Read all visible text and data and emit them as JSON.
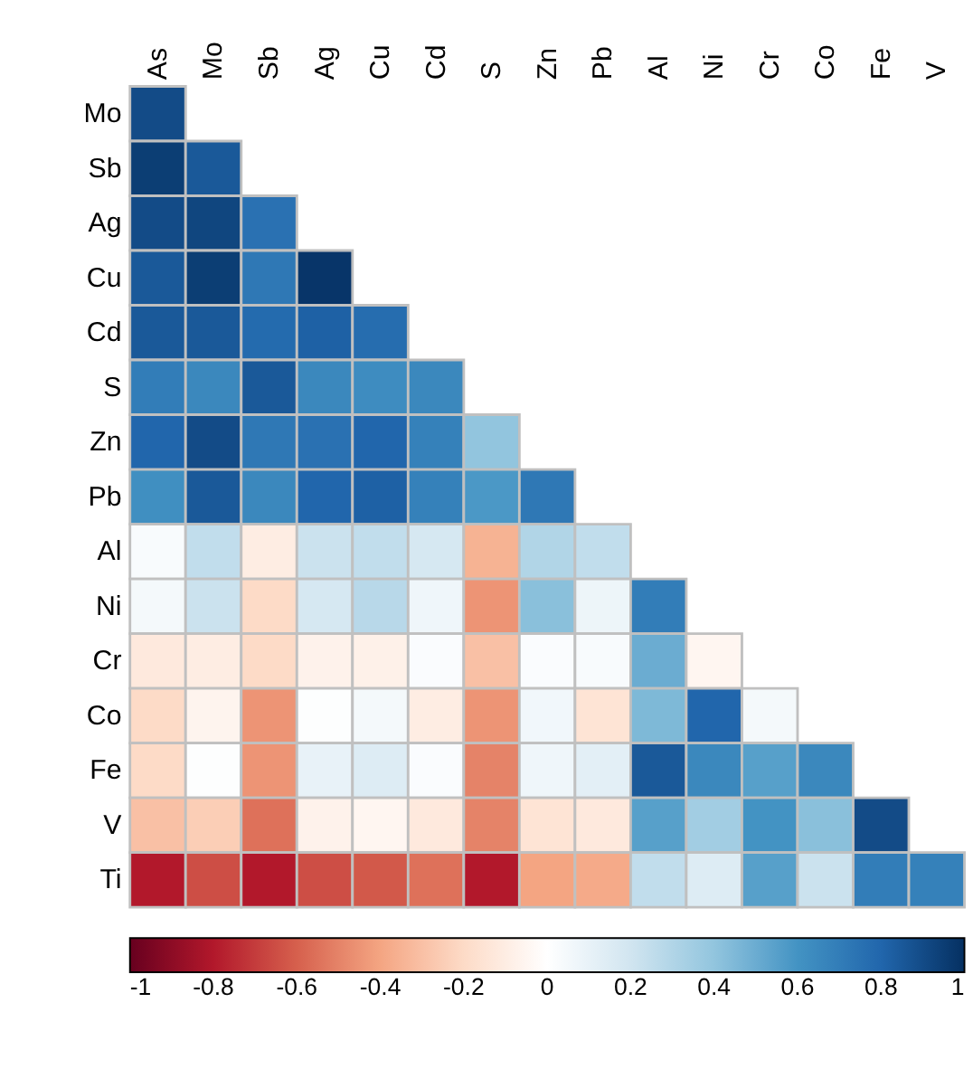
{
  "chart_data": {
    "type": "heatmap",
    "categories": [
      "As",
      "Mo",
      "Sb",
      "Ag",
      "Cu",
      "Cd",
      "S",
      "Zn",
      "Pb",
      "Al",
      "Ni",
      "Cr",
      "Co",
      "Fe",
      "V"
    ],
    "y_categories": [
      "Mo",
      "Sb",
      "Ag",
      "Cu",
      "Cd",
      "S",
      "Zn",
      "Pb",
      "Al",
      "Ni",
      "Cr",
      "Co",
      "Fe",
      "V",
      "Ti"
    ],
    "cells": [
      [
        0.9,
        null,
        null,
        null,
        null,
        null,
        null,
        null,
        null,
        null,
        null,
        null,
        null,
        null,
        null
      ],
      [
        0.95,
        0.85,
        null,
        null,
        null,
        null,
        null,
        null,
        null,
        null,
        null,
        null,
        null,
        null,
        null
      ],
      [
        0.9,
        0.92,
        0.75,
        null,
        null,
        null,
        null,
        null,
        null,
        null,
        null,
        null,
        null,
        null,
        null
      ],
      [
        0.85,
        0.95,
        0.72,
        0.98,
        null,
        null,
        null,
        null,
        null,
        null,
        null,
        null,
        null,
        null,
        null
      ],
      [
        0.85,
        0.85,
        0.78,
        0.82,
        0.77,
        null,
        null,
        null,
        null,
        null,
        null,
        null,
        null,
        null,
        null
      ],
      [
        0.7,
        0.65,
        0.85,
        0.65,
        0.63,
        0.65,
        null,
        null,
        null,
        null,
        null,
        null,
        null,
        null,
        null
      ],
      [
        0.8,
        0.9,
        0.72,
        0.75,
        0.8,
        0.68,
        0.4,
        null,
        null,
        null,
        null,
        null,
        null,
        null,
        null
      ],
      [
        0.62,
        0.85,
        0.65,
        0.8,
        0.82,
        0.68,
        0.58,
        0.72,
        null,
        null,
        null,
        null,
        null,
        null,
        null
      ],
      [
        0.03,
        0.25,
        -0.1,
        0.22,
        0.25,
        0.18,
        -0.35,
        0.3,
        0.25,
        null,
        null,
        null,
        null,
        null,
        null
      ],
      [
        0.05,
        0.22,
        -0.2,
        0.18,
        0.28,
        0.07,
        -0.45,
        0.42,
        0.08,
        0.7,
        null,
        null,
        null,
        null,
        null
      ],
      [
        -0.12,
        -0.1,
        -0.2,
        -0.07,
        -0.08,
        0.02,
        -0.3,
        0.02,
        0.03,
        0.5,
        -0.05,
        null,
        null,
        null,
        null
      ],
      [
        -0.2,
        -0.06,
        -0.45,
        0.01,
        0.05,
        -0.1,
        -0.45,
        0.06,
        -0.15,
        0.45,
        0.8,
        0.05,
        null,
        null,
        null
      ],
      [
        -0.2,
        0.01,
        -0.45,
        0.1,
        0.15,
        0.02,
        -0.5,
        0.07,
        0.12,
        0.85,
        0.65,
        0.55,
        0.65,
        null,
        null
      ],
      [
        -0.3,
        -0.25,
        -0.55,
        -0.07,
        -0.05,
        -0.12,
        -0.5,
        -0.15,
        -0.12,
        0.55,
        0.35,
        0.6,
        0.42,
        0.9,
        null
      ],
      [
        -0.8,
        -0.65,
        -0.8,
        -0.65,
        -0.62,
        -0.55,
        -0.8,
        -0.4,
        -0.38,
        0.25,
        0.15,
        0.55,
        0.22,
        0.7,
        0.68
      ]
    ],
    "clim": [
      -1,
      1
    ],
    "cticks": [
      -1,
      -0.8,
      -0.6,
      -0.4,
      -0.2,
      0,
      0.2,
      0.4,
      0.6,
      0.8,
      1
    ]
  }
}
